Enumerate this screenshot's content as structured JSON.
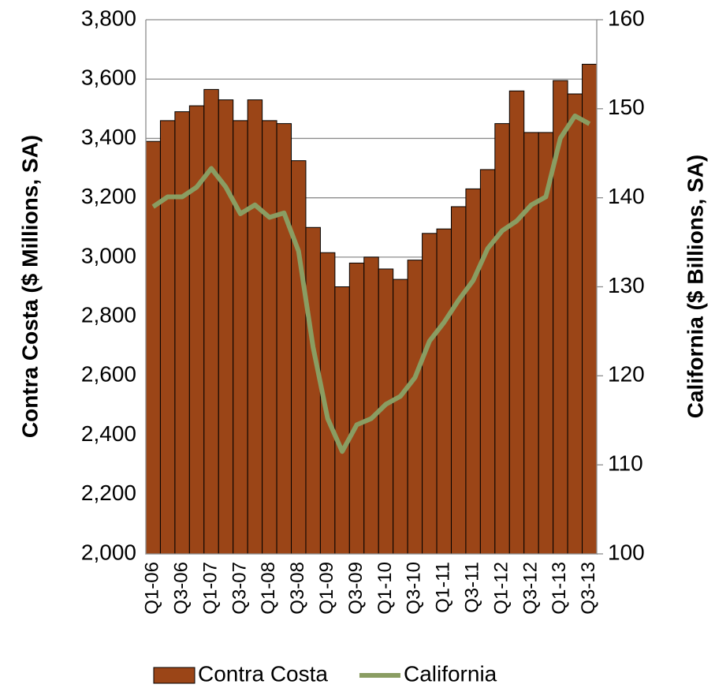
{
  "chart_data": {
    "type": "bar-line",
    "y_label": "Contra Costa ($ Millions, SA)",
    "y2_label": "California ($ Billions, SA)",
    "categories": [
      "Q1-06",
      null,
      "Q3-06",
      null,
      "Q1-07",
      null,
      "Q3-07",
      null,
      "Q1-08",
      null,
      "Q3-08",
      null,
      "Q1-09",
      null,
      "Q3-09",
      null,
      "Q1-10",
      null,
      "Q3-10",
      null,
      "Q1-11",
      null,
      "Q3-11",
      null,
      "Q1-12",
      null,
      "Q3-12",
      null,
      "Q1-13",
      null,
      "Q3-13"
    ],
    "series": [
      {
        "name": "Contra Costa",
        "color": "#9b4517",
        "type": "bar",
        "values": [
          3390,
          3460,
          3490,
          3510,
          3565,
          3530,
          3460,
          3530,
          3460,
          3450,
          3325,
          3100,
          3015,
          2900,
          2980,
          3000,
          2960,
          2925,
          2990,
          3080,
          3095,
          3170,
          3230,
          3295,
          3450,
          3560,
          3420,
          3420,
          3595,
          3550,
          3650
        ]
      },
      {
        "name": "California",
        "color": "#8a9d62",
        "type": "line",
        "axis": "y2",
        "values": [
          139.0,
          140.1,
          140.1,
          141.2,
          143.3,
          141.2,
          138.2,
          139.2,
          137.8,
          138.3,
          134.0,
          123.2,
          115.2,
          111.5,
          114.5,
          115.2,
          116.8,
          117.7,
          119.8,
          123.9,
          126.0,
          128.5,
          130.7,
          134.3,
          136.3,
          137.4,
          139.2,
          140.1,
          146.7,
          149.2,
          148.3
        ]
      }
    ],
    "ylim": [
      2000,
      3800
    ],
    "yticks": [
      {
        "value": 2000,
        "label": "2,000"
      },
      {
        "value": 2200,
        "label": "2,200"
      },
      {
        "value": 2400,
        "label": "2,400"
      },
      {
        "value": 2600,
        "label": "2,600"
      },
      {
        "value": 2800,
        "label": "2,800"
      },
      {
        "value": 3000,
        "label": "3,000"
      },
      {
        "value": 3200,
        "label": "3,200"
      },
      {
        "value": 3400,
        "label": "3,400"
      },
      {
        "value": 3600,
        "label": "3,600"
      },
      {
        "value": 3800,
        "label": "3,800"
      }
    ],
    "y2lim": [
      100,
      160
    ],
    "y2ticks": [
      100,
      110,
      120,
      130,
      140,
      150,
      160
    ],
    "grid": true,
    "legend": "bottom"
  }
}
